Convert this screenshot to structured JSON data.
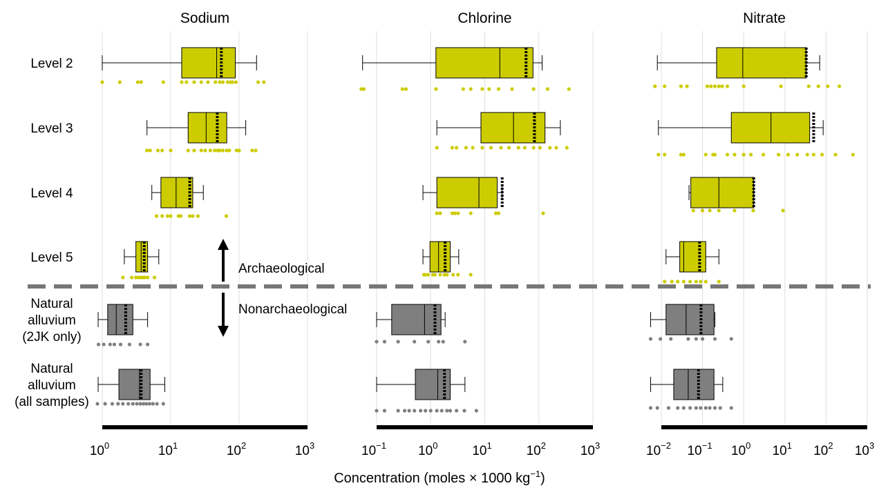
{
  "chart_data": {
    "type": "box",
    "xlabel": "Concentration (moles × 1000 kg",
    "xlabel_sup": "−1",
    "xlabel_tail": ")",
    "x_scale": "log",
    "rows": [
      "Level 2",
      "Level 3",
      "Level 4",
      "Level 5",
      "Natural alluvium (2JK only)",
      "Natural alluvium (all samples)"
    ],
    "row_labels": [
      [
        "Level 2"
      ],
      [
        "Level 3"
      ],
      [
        "Level 4"
      ],
      [
        "Level 5"
      ],
      [
        "Natural",
        "alluvium",
        "(2JK only)"
      ],
      [
        "Natural",
        "alluvium",
        "(all samples)"
      ]
    ],
    "annotations": {
      "up": "Archaeological",
      "down": "Nonarchaeological"
    },
    "colors": {
      "archaeological": "#cccc00",
      "natural": "#7f7f7f",
      "divider": "#777777"
    },
    "panels": [
      {
        "title": "Sodium",
        "xlim_exp": [
          0,
          3
        ],
        "ticks": [
          {
            "base": "10",
            "exp": "0"
          },
          {
            "base": "10",
            "exp": "1"
          },
          {
            "base": "10",
            "exp": "2"
          },
          {
            "base": "10",
            "exp": "3"
          }
        ],
        "boxes": [
          {
            "min": 1.0,
            "q1": 14.5,
            "median": 47,
            "q3": 88,
            "max": 180,
            "mean": 55
          },
          {
            "min": 4.5,
            "q1": 18,
            "median": 33,
            "q3": 66,
            "max": 125,
            "mean": 48
          },
          {
            "min": 5.3,
            "q1": 7.2,
            "median": 12,
            "q3": 21,
            "max": 30,
            "mean": 19
          },
          {
            "min": 2.1,
            "q1": 3.1,
            "median": 3.7,
            "q3": 4.6,
            "max": 6.7,
            "mean": 4.1
          },
          {
            "min": 0.87,
            "q1": 1.2,
            "median": 1.6,
            "q3": 2.8,
            "max": 4.6,
            "mean": 2.2
          },
          {
            "min": 0.87,
            "q1": 1.75,
            "median": 3.5,
            "q3": 5.0,
            "max": 8.2,
            "mean": 3.7
          }
        ],
        "points": [
          [
            1.0,
            1.8,
            3.3,
            3.7,
            7.8,
            14.5,
            17,
            22,
            28,
            35,
            45,
            52,
            58,
            68,
            75,
            80,
            90,
            190,
            230
          ],
          [
            4.5,
            5,
            6.5,
            7.5,
            10,
            18,
            22,
            28,
            32,
            38,
            44,
            49,
            52,
            58,
            66,
            72,
            92,
            100,
            155,
            175
          ],
          [
            6.2,
            7.5,
            9,
            10,
            13,
            14,
            19,
            21,
            25,
            65
          ],
          [
            2.0,
            2.7,
            3.1,
            3.4,
            3.7,
            3.9,
            4.2,
            4.6,
            5.8
          ],
          [
            0.88,
            1.05,
            1.3,
            1.5,
            1.85,
            2.5,
            3.6,
            4.6
          ],
          [
            0.85,
            1.1,
            1.4,
            1.7,
            2.0,
            2.4,
            2.8,
            3.2,
            3.6,
            4.0,
            4.4,
            4.9,
            5.5,
            6.3,
            7.8
          ]
        ]
      },
      {
        "title": "Chlorine",
        "xlim_exp": [
          -1,
          3
        ],
        "ticks": [
          {
            "base": "10",
            "exp": "−1"
          },
          {
            "base": "10",
            "exp": "0"
          },
          {
            "base": "10",
            "exp": "1"
          },
          {
            "base": "10",
            "exp": "2"
          },
          {
            "base": "10",
            "exp": "3"
          }
        ],
        "boxes": [
          {
            "min": 0.055,
            "q1": 1.25,
            "median": 19,
            "q3": 78,
            "max": 115,
            "mean": 58
          },
          {
            "min": 1.3,
            "q1": 8.5,
            "median": 34,
            "q3": 130,
            "max": 250,
            "mean": 83
          },
          {
            "min": 0.72,
            "q1": 1.3,
            "median": 7.8,
            "q3": 17,
            "max": 21,
            "mean": 21
          },
          {
            "min": 0.72,
            "q1": 0.97,
            "median": 1.4,
            "q3": 2.3,
            "max": 3.3,
            "mean": 1.85
          },
          {
            "min": 0.1,
            "q1": 0.19,
            "median": 0.77,
            "q3": 1.55,
            "max": 1.85,
            "mean": 1.2
          },
          {
            "min": 0.1,
            "q1": 0.52,
            "median": 1.35,
            "q3": 2.3,
            "max": 4.3,
            "mean": 1.8
          }
        ],
        "points": [
          [
            0.052,
            0.058,
            0.3,
            0.35,
            1.25,
            4,
            5.5,
            9,
            12,
            18,
            32,
            80,
            145,
            360
          ],
          [
            1.3,
            2.5,
            3,
            4.5,
            6,
            9,
            13,
            20,
            28,
            42,
            55,
            80,
            105,
            160,
            210,
            330
          ],
          [
            1.3,
            1.5,
            2.5,
            2.8,
            3.2,
            5.5,
            16,
            18,
            120
          ],
          [
            0.75,
            0.8,
            0.9,
            1.1,
            1.2,
            1.5,
            1.8,
            2.0,
            2.6,
            3.2,
            5.5
          ],
          [
            0.1,
            0.14,
            0.25,
            0.5,
            0.9,
            1.4,
            1.7,
            4.3
          ],
          [
            0.1,
            0.14,
            0.25,
            0.33,
            0.4,
            0.5,
            0.65,
            0.8,
            1.0,
            1.3,
            1.6,
            2.0,
            2.3,
            3.0,
            4.2,
            7.0
          ]
        ]
      },
      {
        "title": "Nitrate",
        "xlim_exp": [
          -2,
          3
        ],
        "ticks": [
          {
            "base": "10",
            "exp": "−2"
          },
          {
            "base": "10",
            "exp": "−1"
          },
          {
            "base": "10",
            "exp": "0"
          },
          {
            "base": "10",
            "exp": "1"
          },
          {
            "base": "10",
            "exp": "2"
          },
          {
            "base": "10",
            "exp": "3"
          }
        ],
        "boxes": [
          {
            "min": 0.008,
            "q1": 0.22,
            "median": 0.95,
            "q3": 33,
            "max": 70,
            "mean": 33
          },
          {
            "min": 0.0085,
            "q1": 0.5,
            "median": 4.6,
            "q3": 40,
            "max": 85,
            "mean": 50
          },
          {
            "min": 0.047,
            "q1": 0.052,
            "median": 0.25,
            "q3": 1.75,
            "max": 1.75,
            "mean": 1.75
          },
          {
            "min": 0.013,
            "q1": 0.028,
            "median": 0.035,
            "q3": 0.12,
            "max": 0.25,
            "mean": 0.085
          },
          {
            "min": 0.0055,
            "q1": 0.013,
            "median": 0.04,
            "q3": 0.19,
            "max": 0.2,
            "mean": 0.092
          },
          {
            "min": 0.0055,
            "q1": 0.02,
            "median": 0.045,
            "q3": 0.19,
            "max": 0.31,
            "mean": 0.08
          }
        ],
        "points": [
          [
            0.007,
            0.012,
            0.03,
            0.042,
            0.13,
            0.16,
            0.2,
            0.25,
            0.3,
            0.4,
            1.0,
            8,
            38,
            65,
            110,
            210
          ],
          [
            0.0085,
            0.012,
            0.03,
            0.035,
            0.12,
            0.18,
            0.2,
            0.4,
            0.6,
            1.0,
            1.5,
            3,
            7,
            12,
            20,
            35,
            50,
            80,
            170,
            450
          ],
          [
            0.06,
            0.1,
            0.15,
            0.25,
            0.6,
            1.7,
            9
          ],
          [
            0.012,
            0.018,
            0.025,
            0.035,
            0.05,
            0.07,
            0.09,
            0.12,
            0.25
          ],
          [
            0.0055,
            0.0095,
            0.017,
            0.045,
            0.07,
            0.1,
            0.2,
            0.5
          ],
          [
            0.0055,
            0.008,
            0.015,
            0.025,
            0.035,
            0.05,
            0.07,
            0.09,
            0.12,
            0.15,
            0.2,
            0.27,
            0.5
          ]
        ]
      }
    ]
  }
}
